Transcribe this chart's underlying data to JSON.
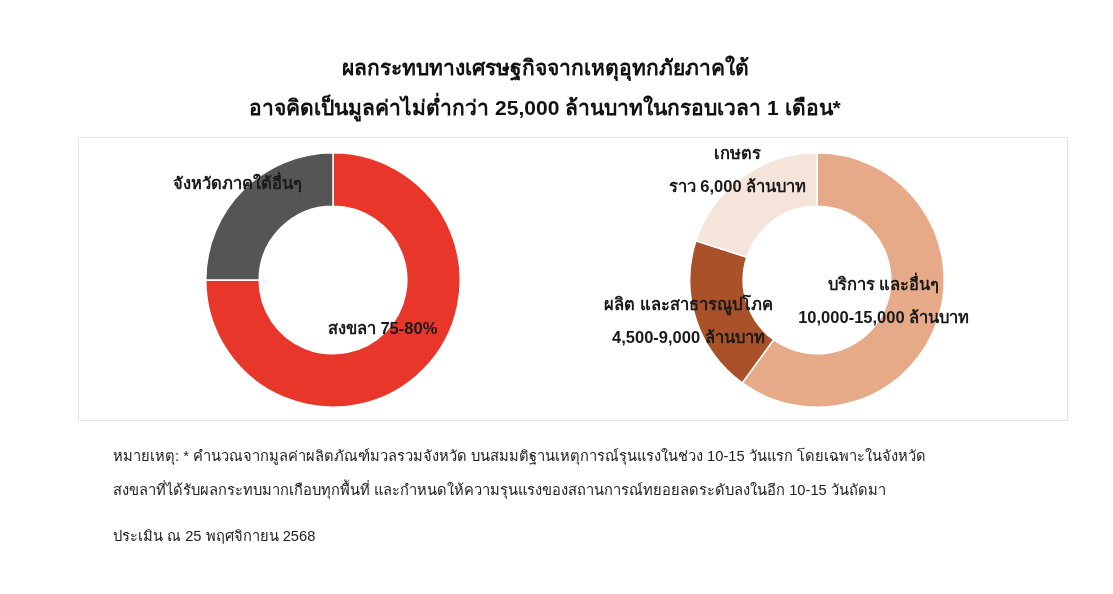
{
  "chart_data": [
    {
      "type": "donut",
      "title": "ผลกระทบทางเศรษฐกิจจากเหตุอุทกภัยภาคใต้",
      "subtitle": "อาจคิดเป็นมูลค่าไม่ต่ำกว่า 25,000 ล้านบาทในกรอบเวลา 1 เดือน*",
      "categories": [
        "สงขลา",
        "จังหวัดภาคใต้อื่นๆ"
      ],
      "values": [
        75,
        25
      ],
      "colors": [
        "#e8372a",
        "#555555"
      ],
      "value_labels": [
        "75-80%",
        null
      ],
      "annotations": [
        "หมายเหตุ: * คำนวณจากมูลค่าผลิตภัณฑ์มวลรวมจังหวัด บนสมมติฐานเหตุการณ์รุนแรงในช่วง 10-15 วันแรก โดยเฉพาะในจังหวัดสงขลาที่ได้รับผลกระทบมากเกือบทุกพื้นที่ และกำหนดให้ความรุนแรงของสถานการณ์ทยอยลดระดับลงในอีก 10-15 วันถัดมา",
        "ประเมิน ณ 25 พฤศจิกายน 2568"
      ]
    },
    {
      "type": "donut",
      "categories": [
        "บริการ และอื่นๆ",
        "ผลิต และสาธารณูปโภค",
        "เกษตร"
      ],
      "values": [
        60,
        20,
        20
      ],
      "colors": [
        "#e6aa88",
        "#a9522a",
        "#f5e4da"
      ],
      "value_labels": [
        "10,000-15,000 ล้านบาท",
        "4,500-9,000 ล้านบาท",
        "ราว 6,000 ล้านบาท"
      ]
    }
  ]
}
